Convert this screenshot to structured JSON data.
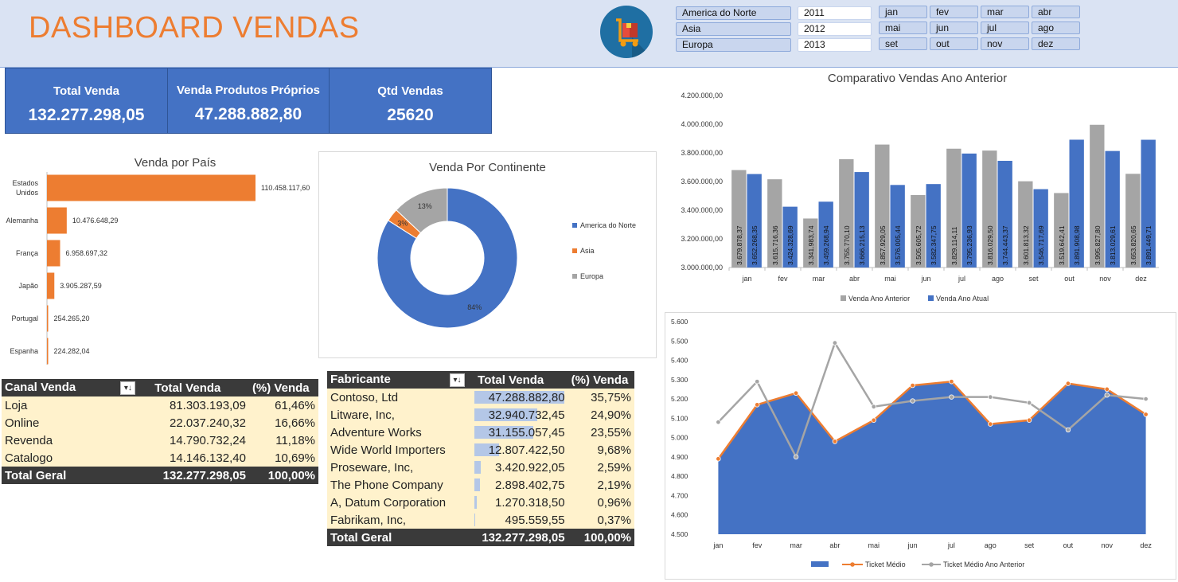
{
  "header": {
    "title": "DASHBOARD VENDAS"
  },
  "slicers": {
    "continents": [
      "America do Norte",
      "Asia",
      "Europa"
    ],
    "years": [
      "2011",
      "2012",
      "2013"
    ],
    "months": [
      "jan",
      "fev",
      "mar",
      "abr",
      "mai",
      "jun",
      "jul",
      "ago",
      "set",
      "out",
      "nov",
      "dez"
    ]
  },
  "kpis": [
    {
      "label": "Total  Venda",
      "value": "132.277.298,05"
    },
    {
      "label": "Venda Produtos Próprios",
      "value": "47.288.882,80"
    },
    {
      "label": "Qtd Vendas",
      "value": "25620"
    }
  ],
  "country_chart": {
    "title": "Venda por País",
    "type": "bar",
    "categories": [
      "Estados Unidos",
      "Alemanha",
      "França",
      "Japão",
      "Portugal",
      "Espanha"
    ],
    "values": [
      110458117.6,
      10476648.29,
      6958697.32,
      3905287.59,
      254265.2,
      224282.04
    ],
    "labels": [
      "110.458.117,60",
      "10.476.648,29",
      "6.958.697,32",
      "3.905.287,59",
      "254.265,20",
      "224.282,04"
    ],
    "color": "#ed7d31"
  },
  "continent_chart": {
    "title": "Venda Por Continente",
    "type": "pie",
    "legend": [
      "America do Norte",
      "Asia",
      "Europa"
    ],
    "values": [
      84,
      3,
      13
    ],
    "labels": [
      "84%",
      "3%",
      "13%"
    ],
    "colors": [
      "#4472c4",
      "#ed7d31",
      "#a5a5a5"
    ]
  },
  "canal_table": {
    "headers": [
      "Canal Venda",
      "Total Venda",
      "(%) Venda"
    ],
    "rows": [
      [
        "Loja",
        "81.303.193,09",
        "61,46%"
      ],
      [
        "Online",
        "22.037.240,32",
        "16,66%"
      ],
      [
        "Revenda",
        "14.790.732,24",
        "11,18%"
      ],
      [
        "Catalogo",
        "14.146.132,40",
        "10,69%"
      ]
    ],
    "total": [
      "Total Geral",
      "132.277.298,05",
      "100,00%"
    ]
  },
  "fabricante_table": {
    "headers": [
      "Fabricante",
      "Total Venda",
      "(%) Venda"
    ],
    "rows": [
      [
        "Contoso, Ltd",
        "47.288.882,80",
        "35,75%"
      ],
      [
        "Litware, Inc,",
        "32.940.732,45",
        "24,90%"
      ],
      [
        "Adventure Works",
        "31.155.057,45",
        "23,55%"
      ],
      [
        "Wide World Importers",
        "12.807.422,50",
        "9,68%"
      ],
      [
        "Proseware, Inc,",
        "3.420.922,05",
        "2,59%"
      ],
      [
        "The Phone Company",
        "2.898.402,75",
        "2,19%"
      ],
      [
        "A, Datum Corporation",
        "1.270.318,50",
        "0,96%"
      ],
      [
        "Fabrikam, Inc,",
        "495.559,55",
        "0,37%"
      ]
    ],
    "bar_values": [
      47288882.8,
      32940732.45,
      31155057.45,
      12807422.5,
      3420922.05,
      2898402.75,
      1270318.5,
      495559.55
    ],
    "total": [
      "Total Geral",
      "132.277.298,05",
      "100,00%"
    ]
  },
  "comparativo_chart": {
    "title": "Comparativo Vendas Ano Anterior",
    "type": "bar",
    "categories": [
      "jan",
      "fev",
      "mar",
      "abr",
      "mai",
      "jun",
      "jul",
      "ago",
      "set",
      "out",
      "nov",
      "dez"
    ],
    "ylim": [
      3000000,
      4200000
    ],
    "yticks": [
      "3.000.000,00",
      "3.200.000,00",
      "3.400.000,00",
      "3.600.000,00",
      "3.800.000,00",
      "4.000.000,00",
      "4.200.000,00"
    ],
    "series": [
      {
        "name": "Venda Ano Anterior",
        "color": "#a5a5a5",
        "values": [
          3679878.37,
          3615716.36,
          3341983.74,
          3755770.1,
          3857929.05,
          3505605.72,
          3829114.11,
          3816029.5,
          3601813.32,
          3519642.41,
          3995827.8,
          3653820.65
        ],
        "labels": [
          "3.679.878,37",
          "3.615.716,36",
          "3.341.983,74",
          "3.755.770,10",
          "3.857.929,05",
          "3.505.605,72",
          "3.829.114,11",
          "3.816.029,50",
          "3.601.813,32",
          "3.519.642,41",
          "3.995.827,80",
          "3.653.820,65"
        ]
      },
      {
        "name": "Venda Ano Atual",
        "color": "#4472c4",
        "values": [
          3652268.35,
          3424328.69,
          3459268.94,
          3666215.13,
          3576005.44,
          3582347.75,
          3795236.93,
          3744443.37,
          3546717.69,
          3891908.98,
          3813029.61,
          3891449.71
        ],
        "labels": [
          "3.652.268,35",
          "3.424.328,69",
          "3.459.268,94",
          "3.666.215,13",
          "3.576.005,44",
          "3.582.347,75",
          "3.795.236,93",
          "3.744.443,37",
          "3.546.717,69",
          "3.891.908,98",
          "3.813.029,61",
          "3.891.449,71"
        ]
      }
    ]
  },
  "ticket_chart": {
    "type": "area",
    "categories": [
      "jan",
      "fev",
      "mar",
      "abr",
      "mai",
      "jun",
      "jul",
      "ago",
      "set",
      "out",
      "nov",
      "dez"
    ],
    "ylim": [
      4500,
      5600
    ],
    "yticks": [
      "4.500",
      "4.600",
      "4.700",
      "4.800",
      "4.900",
      "5.000",
      "5.100",
      "5.200",
      "5.300",
      "5.400",
      "5.500",
      "5.600"
    ],
    "series": [
      {
        "name": "",
        "kind": "area",
        "color": "#4472c4",
        "values": [
          4890,
          5170,
          5230,
          4980,
          5090,
          5270,
          5290,
          5070,
          5090,
          5280,
          5250,
          5120
        ]
      },
      {
        "name": "Ticket Médio",
        "kind": "line",
        "color": "#ed7d31",
        "values": [
          4890,
          5170,
          5230,
          4980,
          5090,
          5270,
          5290,
          5070,
          5090,
          5280,
          5250,
          5120
        ]
      },
      {
        "name": "Ticket Médio Ano Anterior",
        "kind": "line",
        "color": "#a5a5a5",
        "values": [
          5080,
          5290,
          4900,
          5490,
          5160,
          5190,
          5210,
          5210,
          5180,
          5040,
          5220,
          5200
        ]
      }
    ]
  }
}
